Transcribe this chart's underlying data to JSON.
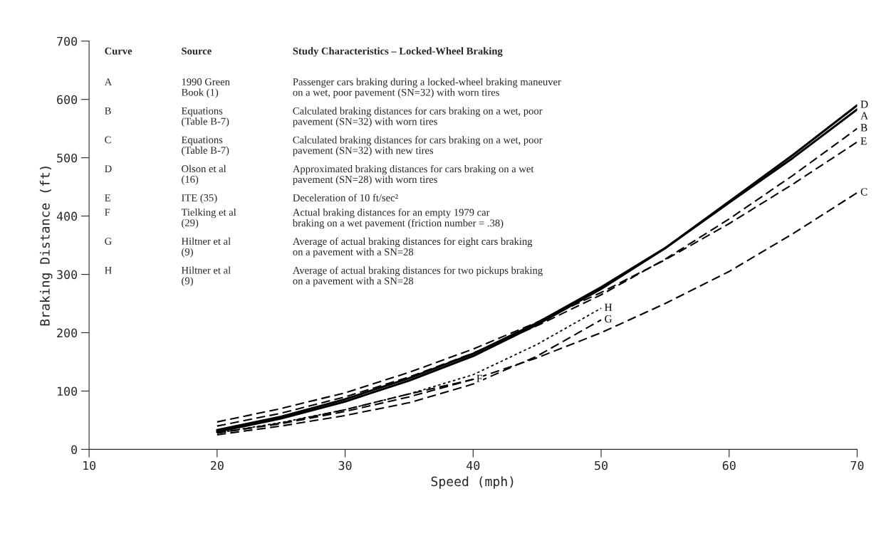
{
  "chart_data": {
    "type": "line",
    "xlabel": "Speed (mph)",
    "ylabel": "Braking Distance (ft)",
    "xlim": [
      10,
      70
    ],
    "ylim": [
      0,
      700
    ],
    "xticks": [
      10,
      20,
      30,
      40,
      50,
      60,
      70
    ],
    "yticks": [
      0,
      100,
      200,
      300,
      400,
      500,
      600,
      700
    ],
    "grid": false,
    "legend": false,
    "series": [
      {
        "name": "A",
        "color": "#000000",
        "line_style": "solid",
        "x": [
          20,
          25,
          30,
          35,
          40,
          45,
          50,
          55,
          60,
          65,
          70
        ],
        "values": [
          33,
          56,
          86,
          122,
          164,
          217,
          278,
          345,
          423,
          500,
          583
        ]
      },
      {
        "name": "B",
        "color": "#000000",
        "line_style": "dashed",
        "x": [
          20,
          25,
          30,
          35,
          40,
          45,
          50,
          55,
          60,
          65,
          70
        ],
        "values": [
          40,
          62,
          90,
          124,
          165,
          212,
          265,
          326,
          395,
          470,
          550
        ]
      },
      {
        "name": "C",
        "color": "#000000",
        "line_style": "dashed",
        "x": [
          20,
          25,
          30,
          35,
          40,
          45,
          50,
          55,
          60,
          65,
          70
        ],
        "values": [
          28,
          44,
          65,
          90,
          120,
          157,
          200,
          250,
          305,
          370,
          440
        ]
      },
      {
        "name": "D",
        "color": "#000000",
        "line_style": "solid",
        "x": [
          20,
          25,
          30,
          35,
          40,
          45,
          50,
          55,
          60,
          65,
          70
        ],
        "values": [
          30,
          53,
          82,
          118,
          160,
          214,
          275,
          345,
          425,
          505,
          590
        ]
      },
      {
        "name": "E",
        "color": "#000000",
        "line_style": "dashed",
        "x": [
          20,
          25,
          30,
          35,
          40,
          45,
          50,
          55,
          60,
          65,
          70
        ],
        "values": [
          47,
          70,
          97,
          132,
          172,
          218,
          269,
          325,
          387,
          455,
          527
        ]
      },
      {
        "name": "F",
        "color": "#000000",
        "line_style": "dashed",
        "x": [
          20,
          25,
          30,
          35,
          40
        ],
        "values": [
          28,
          45,
          68,
          95,
          120
        ]
      },
      {
        "name": "G",
        "color": "#000000",
        "line_style": "dashed",
        "x": [
          20,
          25,
          30,
          35,
          40,
          45,
          50
        ],
        "values": [
          25,
          40,
          58,
          80,
          112,
          160,
          222
        ]
      },
      {
        "name": "H",
        "color": "#000000",
        "line_style": "dotted",
        "x": [
          20,
          25,
          30,
          35,
          40,
          45,
          50
        ],
        "values": [
          28,
          46,
          68,
          95,
          128,
          180,
          242
        ]
      }
    ],
    "annotations": [
      "Curve",
      "Source",
      "Study Characteristics – Locked-Wheel Braking",
      "A",
      "1990 Green\nBook (1)",
      "Passenger cars braking during a locked-wheel braking maneuver\non a wet, poor pavement (SN=32) with worn tires",
      "B",
      "Equations\n(Table B-7)",
      "Calculated braking distances for cars braking on a wet, poor\npavement (SN=32) with worn tires",
      "C",
      "Equations\n(Table B-7)",
      "Calculated braking distances for cars braking on a wet, poor\npavement (SN=32) with new tires",
      "D",
      "Olson et al\n(16)",
      "Approximated braking distances for cars braking on a wet\npavement (SN=28) with worn tires",
      "E",
      "ITE (35)",
      "Deceleration of 10 ft/sec²",
      "F",
      "Tielking et al\n(29)",
      "Actual braking distances for an empty 1979 car\nbraking on a wet pavement (friction number = .38)",
      "G",
      "Hiltner et al\n(9)",
      "Average of actual braking distances for eight cars braking\non a pavement with a SN=28",
      "H",
      "Hiltner et al\n(9)",
      "Average of actual braking distances for two pickups braking\non a pavement with a SN=28"
    ]
  }
}
